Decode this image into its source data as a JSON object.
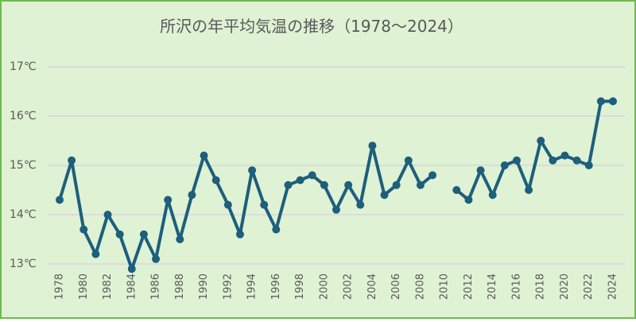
{
  "chart_data": {
    "type": "line",
    "title": "所沢の年平均気温の推移（1978～2024）",
    "categories": [
      "1978",
      null,
      "1980",
      null,
      "1982",
      null,
      "1984",
      null,
      "1986",
      null,
      "1988",
      null,
      "1990",
      null,
      "1992",
      null,
      "1994",
      null,
      "1996",
      null,
      "1998",
      null,
      "2000",
      null,
      "2002",
      null,
      "2004",
      null,
      "2006",
      null,
      "2008",
      null,
      "2010",
      null,
      "2012",
      null,
      "2014",
      null,
      "2016",
      null,
      "2018",
      null,
      "2020",
      null,
      "2022",
      null,
      "2024"
    ],
    "values": [
      14.3,
      15.1,
      13.7,
      13.2,
      14.0,
      13.6,
      12.9,
      13.6,
      13.1,
      14.3,
      13.5,
      14.4,
      15.2,
      14.7,
      14.2,
      13.6,
      14.9,
      14.2,
      13.7,
      14.6,
      14.7,
      14.8,
      14.6,
      14.1,
      14.6,
      14.2,
      15.4,
      14.4,
      14.6,
      15.1,
      14.6,
      14.8,
      null,
      14.5,
      14.3,
      14.9,
      14.4,
      15.0,
      15.1,
      14.5,
      15.5,
      15.1,
      15.2,
      15.1,
      15.0,
      16.3,
      16.3
    ],
    "color": "#1d5f7c",
    "ylim": [
      13,
      17
    ],
    "yticks": [
      {
        "value": 13,
        "label": "13℃"
      },
      {
        "value": 14,
        "label": "14℃"
      },
      {
        "value": 15,
        "label": "15℃"
      },
      {
        "value": 16,
        "label": "16℃"
      },
      {
        "value": 17,
        "label": "17℃"
      }
    ],
    "grid": true
  }
}
